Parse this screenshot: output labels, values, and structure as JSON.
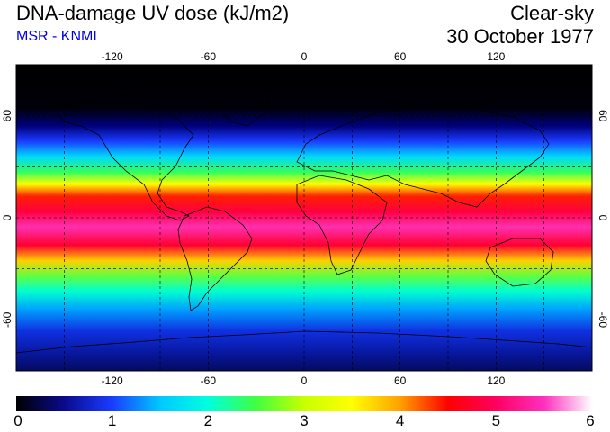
{
  "header": {
    "title": "DNA-damage UV dose (kJ/m2)",
    "source": "MSR - KNMI",
    "sky_condition": "Clear-sky",
    "date": "30 October 1977"
  },
  "map": {
    "lon_range": [
      -180,
      180
    ],
    "lat_range": [
      -90,
      90
    ],
    "lon_ticks": [
      -120,
      -60,
      0,
      60,
      120
    ],
    "lat_ticks": [
      60,
      0,
      -60
    ],
    "lon_tick_labels": [
      "-120",
      "-60",
      "0",
      "60",
      "120"
    ],
    "lat_tick_labels": [
      "60",
      "0",
      "-60"
    ],
    "gridlines": "dashed"
  },
  "colorbar": {
    "min": 0,
    "max": 6,
    "tick_labels": [
      "0",
      "1",
      "2",
      "3",
      "4",
      "5",
      "6"
    ],
    "colors": [
      "#000000",
      "#0a0a8c",
      "#1a3cff",
      "#00c8ff",
      "#00ffe0",
      "#40ff40",
      "#c8ff00",
      "#ffff00",
      "#ffa000",
      "#ff0000",
      "#ff0060",
      "#ff30c0",
      "#ffffff"
    ]
  }
}
